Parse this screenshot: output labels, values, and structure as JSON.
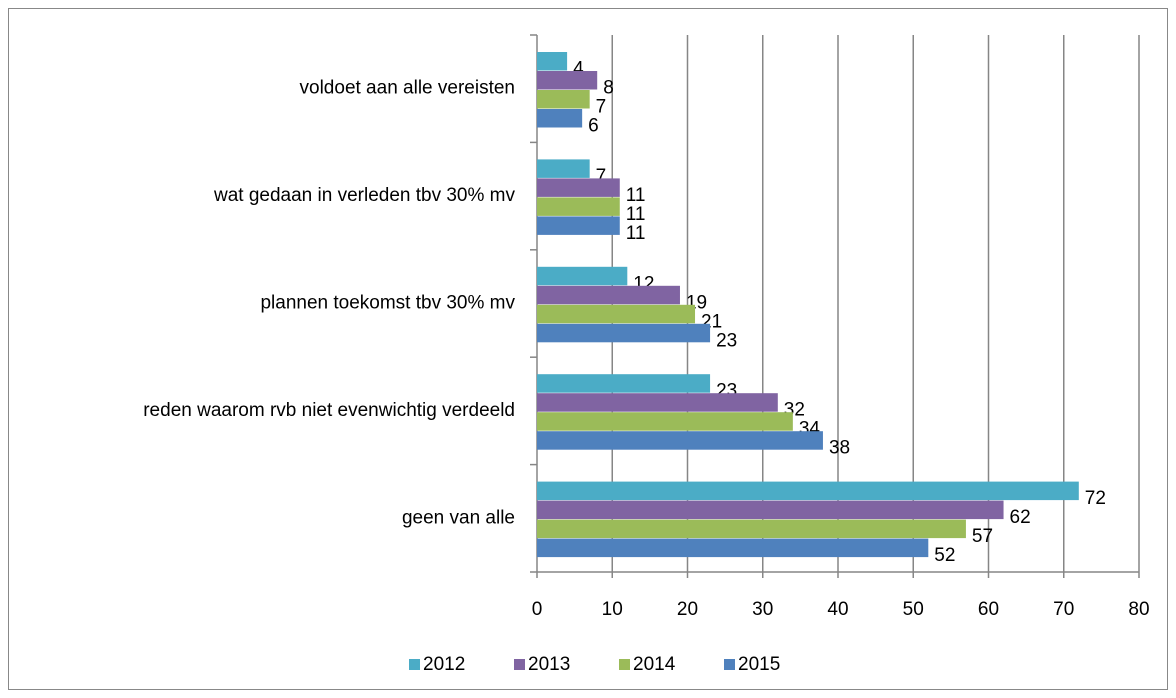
{
  "chart_data": {
    "type": "hbar",
    "categories": [
      "voldoet aan alle vereisten",
      "wat gedaan in verleden tbv 30% mv",
      "plannen toekomst tbv 30% mv",
      "reden waarom rvb niet evenwichtig verdeeld",
      "geen van alle"
    ],
    "series": [
      {
        "name": "2012",
        "color": "#4bacc6",
        "values": [
          4,
          7,
          12,
          23,
          72
        ]
      },
      {
        "name": "2013",
        "color": "#8064a2",
        "values": [
          8,
          11,
          19,
          32,
          62
        ]
      },
      {
        "name": "2014",
        "color": "#9bbb59",
        "values": [
          7,
          11,
          21,
          34,
          57
        ]
      },
      {
        "name": "2015",
        "color": "#4f81bd",
        "values": [
          6,
          11,
          23,
          38,
          52
        ]
      }
    ],
    "xlim": [
      0,
      80
    ],
    "xticks": [
      0,
      10,
      20,
      30,
      40,
      50,
      60,
      70,
      80
    ],
    "grid": true,
    "legend": "bottom"
  }
}
